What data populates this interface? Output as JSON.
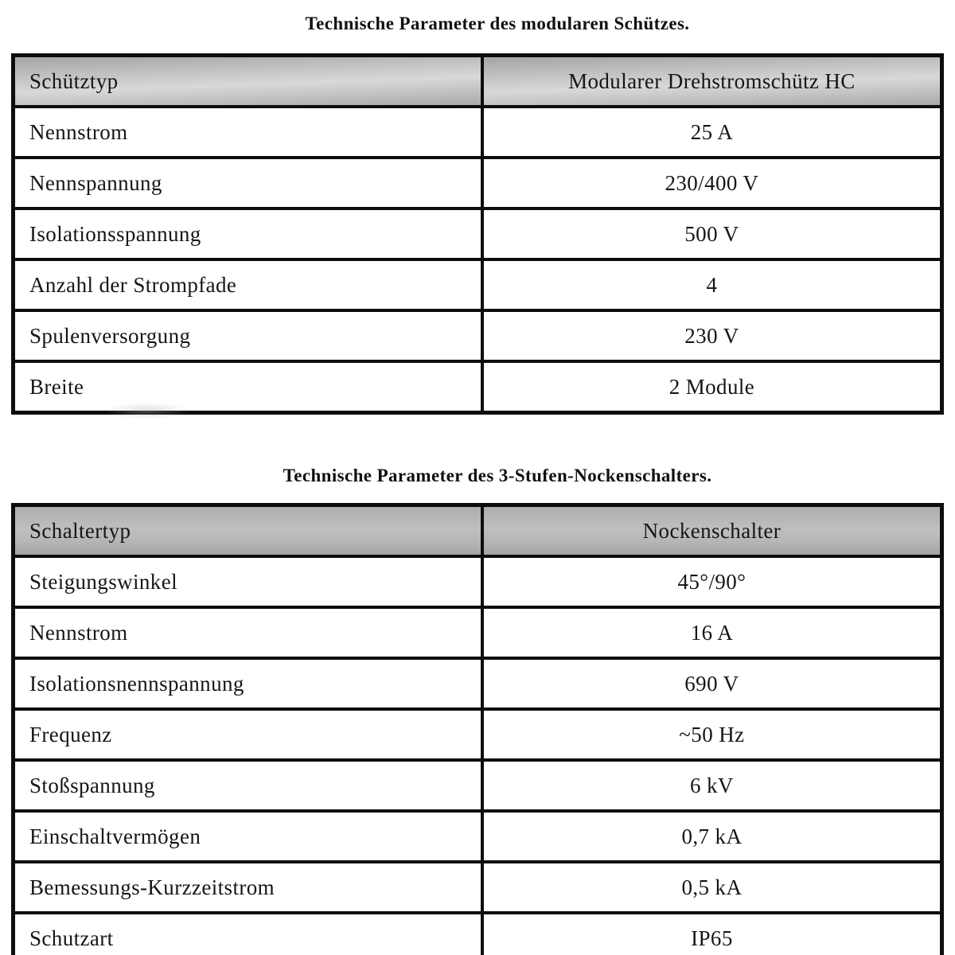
{
  "colors": {
    "border": "#0d0d0d",
    "header_bg": "#b5b5b5",
    "text": "#161616",
    "page_bg": "#ffffff"
  },
  "tables": [
    {
      "title": "Technische Parameter des modularen Schützes.",
      "header": {
        "col1": "Schütztyp",
        "col2": "Modularer Drehstromschütz HC"
      },
      "rows": [
        {
          "label": "Nennstrom",
          "value": "25 A"
        },
        {
          "label": "Nennspannung",
          "value": "230/400 V"
        },
        {
          "label": "Isolationsspannung",
          "value": "500 V"
        },
        {
          "label": "Anzahl der Strompfade",
          "value": "4"
        },
        {
          "label": "Spulenversorgung",
          "value": "230 V"
        },
        {
          "label": "Breite",
          "value": "2 Module"
        }
      ]
    },
    {
      "title": "Technische Parameter des 3-Stufen-Nockenschalters.",
      "header": {
        "col1": "Schaltertyp",
        "col2": "Nockenschalter"
      },
      "rows": [
        {
          "label": "Steigungswinkel",
          "value": "45°/90°"
        },
        {
          "label": "Nennstrom",
          "value": "16 A"
        },
        {
          "label": "Isolationsnennspannung",
          "value": "690 V"
        },
        {
          "label": "Frequenz",
          "value": "~50 Hz"
        },
        {
          "label": "Stoßspannung",
          "value": "6 kV"
        },
        {
          "label": "Einschaltvermögen",
          "value": "0,7 kA"
        },
        {
          "label": "Bemessungs-Kurzzeitstrom",
          "value": "0,5 kA"
        },
        {
          "label": "Schutzart",
          "value": "IP65"
        }
      ]
    }
  ]
}
